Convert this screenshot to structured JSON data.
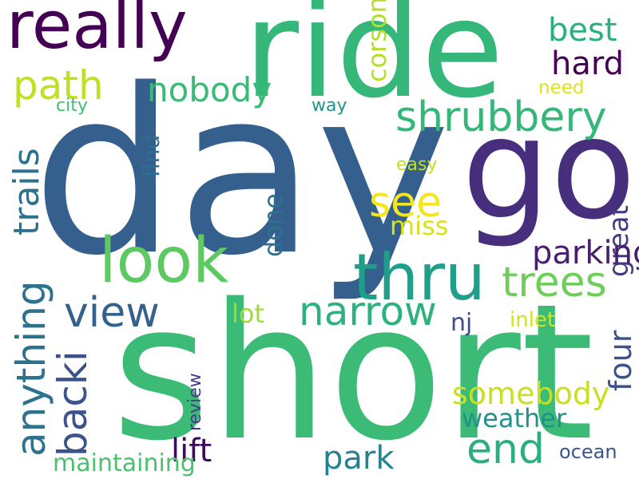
{
  "words": [
    {
      "text": "day",
      "color": "#355f8d"
    },
    {
      "text": "short",
      "color": "#3bbb75"
    },
    {
      "text": "ride",
      "color": "#35b779"
    },
    {
      "text": "go",
      "color": "#472f7d"
    },
    {
      "text": "really",
      "color": "#440154"
    },
    {
      "text": "look",
      "color": "#5ec962"
    },
    {
      "text": "thru",
      "color": "#1f9e89"
    },
    {
      "text": "shrubbery",
      "color": "#35b779"
    },
    {
      "text": "trees",
      "color": "#6ece58"
    },
    {
      "text": "narrow",
      "color": "#2db27d"
    },
    {
      "text": "path",
      "color": "#c2df23"
    },
    {
      "text": "see",
      "color": "#f4e61e"
    },
    {
      "text": "view",
      "color": "#33638d"
    },
    {
      "text": "end",
      "color": "#2ab07f"
    },
    {
      "text": "anything",
      "color": "#2c728e"
    },
    {
      "text": "backi",
      "color": "#3b528b"
    },
    {
      "text": "trails",
      "color": "#2c728e"
    },
    {
      "text": "great",
      "color": "#3aba76"
    },
    {
      "text": "four",
      "color": "#2ab07f"
    },
    {
      "text": "done",
      "color": "#440154"
    },
    {
      "text": "find",
      "color": "#481f70"
    },
    {
      "text": "corsons",
      "color": "#453781"
    },
    {
      "text": "review",
      "color": "#26828e"
    },
    {
      "text": "nobody",
      "color": "#3e0a5e"
    },
    {
      "text": "best",
      "color": "#c8e020"
    },
    {
      "text": "hard",
      "color": "#3b528b"
    },
    {
      "text": "parking",
      "color": "#2c728e"
    },
    {
      "text": "park",
      "color": "#2e6e8e"
    },
    {
      "text": "lift",
      "color": "#b5de2b"
    },
    {
      "text": "somebody",
      "color": "#dde318"
    },
    {
      "text": "need",
      "color": "#40bd72"
    },
    {
      "text": "city",
      "color": "#1f968b"
    },
    {
      "text": "way",
      "color": "#c0df25"
    },
    {
      "text": "easy",
      "color": "#d8e219"
    },
    {
      "text": "miss",
      "color": "#a0da39"
    },
    {
      "text": "lot",
      "color": "#3d4e8a"
    },
    {
      "text": "nj",
      "color": "#d5e21a"
    },
    {
      "text": "inlet",
      "color": "#21918c"
    },
    {
      "text": "weather",
      "color": "#4ac16d"
    },
    {
      "text": "maintaining",
      "color": "#433e85"
    },
    {
      "text": "ocean",
      "color": "#39568c"
    }
  ]
}
